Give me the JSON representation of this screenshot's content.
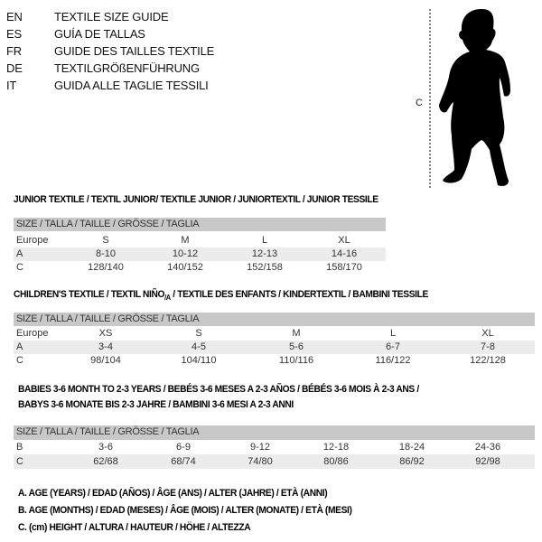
{
  "languages": [
    {
      "code": "EN",
      "title": "TEXTILE SIZE GUIDE"
    },
    {
      "code": "ES",
      "title": "GUÍA DE TALLAS"
    },
    {
      "code": "FR",
      "title": "GUIDE DES TAILLES TEXTILE"
    },
    {
      "code": "DE",
      "title": "TEXTILGRÖßENFÜHRUNG"
    },
    {
      "code": "IT",
      "title": "GUIDA ALLE TAGLIE TESSILI"
    }
  ],
  "figure": {
    "measure_label": "C"
  },
  "junior": {
    "title": "JUNIOR TEXTILE / TEXTIL JUNIOR/ TEXTILE JUNIOR / JUNIORTEXTIL / JUNIOR TESSILE",
    "header": "SIZE / TALLA / TAILLE / GRÖSSE / TAGLIA",
    "rows": [
      {
        "label": "Europe",
        "values": [
          "S",
          "M",
          "L",
          "XL"
        ]
      },
      {
        "label": "A",
        "values": [
          "8-10",
          "10-12",
          "12-13",
          "14-16"
        ]
      },
      {
        "label": "C",
        "values": [
          "128/140",
          "140/152",
          "152/158",
          "158/170"
        ]
      }
    ]
  },
  "children": {
    "title": "CHILDREN'S TEXTILE / TEXTIL NIÑO",
    "title_sub": "/A",
    "title_rest": " / TEXTILE DES ENFANTS / KINDERTEXTIL / BAMBINI TESSILE",
    "header": "SIZE / TALLA / TAILLE / GRÖSSE / TAGLIA",
    "rows": [
      {
        "label": "Europe",
        "values": [
          "XS",
          "S",
          "M",
          "L",
          "XL"
        ]
      },
      {
        "label": "A",
        "values": [
          "3-4",
          "4-5",
          "5-6",
          "6-7",
          "7-8"
        ]
      },
      {
        "label": "C",
        "values": [
          "98/104",
          "104/110",
          "110/116",
          "116/122",
          "122/128"
        ]
      }
    ]
  },
  "babies": {
    "title_line1": "BABIES 3-6 MONTH TO 2-3 YEARS / BEBÉS 3-6 MESES A 2-3 AÑOS / BÉBÉS 3-6 MOIS À 2-3 ANS /",
    "title_line2": "BABYS 3-6 MONATE BIS 2-3 JAHRE / BAMBINI 3-6 MESI A 2-3 ANNI",
    "header": "SIZE / TALLA / TAILLE / GRÖSSE / TAGLIA",
    "rows": [
      {
        "label": "B",
        "values": [
          "3-6",
          "6-9",
          "9-12",
          "12-18",
          "18-24",
          "24-36"
        ]
      },
      {
        "label": "C",
        "values": [
          "62/68",
          "68/74",
          "74/80",
          "80/86",
          "86/92",
          "92/98"
        ]
      }
    ]
  },
  "legend": [
    "A. AGE (YEARS) / EDAD (AÑOS) / ÂGE (ANS) / ALTER (JAHRE) / ETÀ (ANNI)",
    "B. AGE (MONTHS) / EDAD (MESES) / ÂGE (MOIS) / ALTER (MONATE) / ETÀ (MESI)",
    "C. (cm) HEIGHT / ALTURA / HAUTEUR / HÖHE / ALTEZZA"
  ]
}
